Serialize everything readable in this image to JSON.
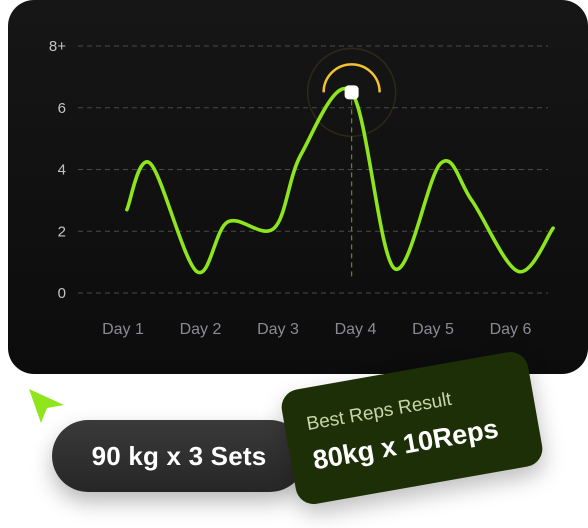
{
  "chart_data": {
    "type": "line",
    "categories": [
      "Day 1",
      "Day 2",
      "Day 3",
      "Day 4",
      "Day 5",
      "Day 6"
    ],
    "y_tick_labels": [
      "0",
      "2",
      "4",
      "6",
      "8+"
    ],
    "ylim": [
      0,
      8
    ],
    "grid": true,
    "series": [
      {
        "x": [
          0.05,
          0.35,
          0.95,
          1.35,
          1.95,
          2.3,
          2.95,
          3.5,
          4.1,
          4.5,
          5.1,
          5.55
        ],
        "values": [
          2.7,
          4.2,
          0.7,
          2.3,
          2.1,
          4.5,
          6.5,
          0.8,
          4.2,
          3.0,
          0.7,
          2.1
        ]
      }
    ],
    "highlight": {
      "x": 2.95,
      "value": 6.5
    },
    "colors": {
      "line": "#8ee51b",
      "marker": "#ffffff",
      "marker_ring": "#f2c230",
      "grid": "#4a4a4a",
      "tick_text": "#c4c4c4",
      "day_text": "#8a8a94"
    }
  },
  "workout": {
    "sets_label": "90 kg x 3 Sets"
  },
  "best_result": {
    "title": "Best Reps Result",
    "value": "80kg x 10Reps"
  },
  "icons": {
    "pointer": "cursor-arrow-icon"
  },
  "colors": {
    "pointer": "#8ee51b",
    "best_card_bg": "#1d2f06",
    "pill_bg": "#2f2f2f"
  }
}
